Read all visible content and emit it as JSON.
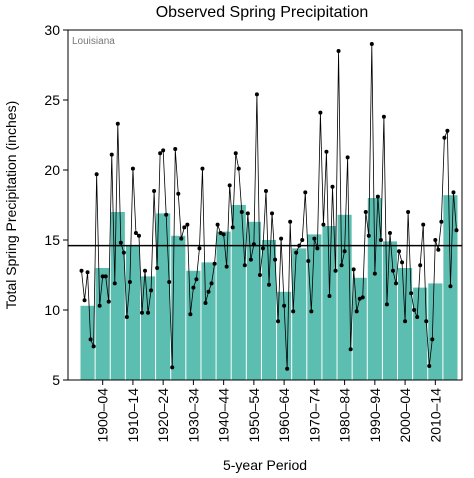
{
  "chart_data": {
    "type": "bar-line",
    "title": "Observed Spring Precipitation",
    "annotation": "Louisiana",
    "y_label": "Total Spring Precipitation (inches)",
    "x_label": "5-year Period",
    "categories": [
      null,
      "1900–04",
      null,
      "1910–14",
      null,
      "1920–24",
      null,
      "1930–34",
      null,
      "1940–44",
      null,
      "1950–54",
      null,
      "1960–64",
      null,
      "1970–74",
      null,
      "1980–84",
      null,
      "1990–94",
      null,
      "2000–04",
      null,
      "2010–14",
      null
    ],
    "bars": {
      "color": "#5cbdb1",
      "values": [
        10.3,
        13.0,
        17.0,
        14.6,
        12.4,
        16.9,
        15.3,
        12.8,
        13.4,
        15.6,
        17.5,
        16.3,
        15.0,
        11.3,
        14.4,
        15.4,
        16.0,
        16.8,
        12.3,
        18.0,
        14.9,
        13.0,
        11.6,
        11.9,
        18.2
      ]
    },
    "line": {
      "color": "#000000",
      "values": [
        12.8,
        10.7,
        12.7,
        7.9,
        7.4,
        19.7,
        10.3,
        12.4,
        12.4,
        10.6,
        21.1,
        11.9,
        23.3,
        14.8,
        14.1,
        9.5,
        12.0,
        20.1,
        15.5,
        15.3,
        9.8,
        12.8,
        9.8,
        11.4,
        18.5,
        13.0,
        21.2,
        21.4,
        16.8,
        12.0,
        5.9,
        21.5,
        18.3,
        15.1,
        15.9,
        16.1,
        9.7,
        11.6,
        12.2,
        14.4,
        20.1,
        10.5,
        11.3,
        11.9,
        13.3,
        16.1,
        15.5,
        15.4,
        13.1,
        18.9,
        15.9,
        21.2,
        20.1,
        17.0,
        13.2,
        16.9,
        13.6,
        14.7,
        25.4,
        12.5,
        14.4,
        18.5,
        11.8,
        16.9,
        13.6,
        9.2,
        15.1,
        10.3,
        5.8,
        16.3,
        9.9,
        14.1,
        14.6,
        15.0,
        18.4,
        13.5,
        9.9,
        15.1,
        14.4,
        24.1,
        16.1,
        21.3,
        11.0,
        18.8,
        12.8,
        28.5,
        13.2,
        14.2,
        20.9,
        7.2,
        12.9,
        9.9,
        10.8,
        10.9,
        17.0,
        15.3,
        29.0,
        12.6,
        18.1,
        15.0,
        23.8,
        10.4,
        15.5,
        12.8,
        11.9,
        14.2,
        13.4,
        9.2,
        17.0,
        11.2,
        10.0,
        9.5,
        13.2,
        16.1,
        9.2,
        6.0,
        7.9,
        15.0,
        14.3,
        16.3,
        22.3,
        22.8,
        11.7,
        18.4,
        15.7
      ]
    },
    "reference_line": 14.6,
    "ylim": [
      5,
      30
    ],
    "yticks": [
      5,
      10,
      15,
      20,
      25,
      30
    ]
  }
}
